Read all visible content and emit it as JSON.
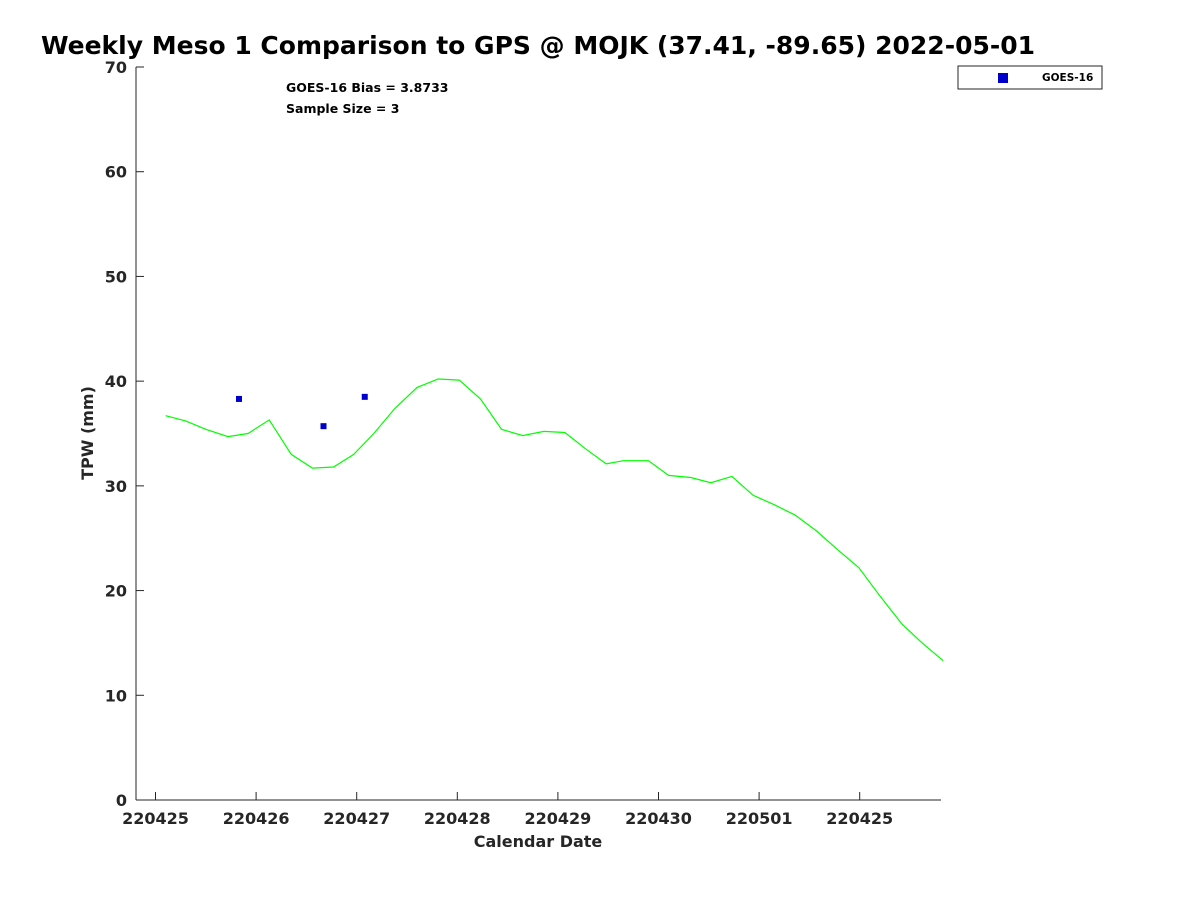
{
  "chart_data": {
    "type": "line",
    "title": "Weekly Meso 1 Comparison to GPS @ MOJK (37.41, -89.65) 2022-05-01",
    "xlabel": "Calendar Date",
    "ylabel": "TPW (mm)",
    "ylim": [
      0,
      70
    ],
    "xlim": [
      -0.01,
      7.83
    ],
    "yticks": [
      0,
      10,
      20,
      30,
      40,
      50,
      60,
      70
    ],
    "xticks": [
      {
        "pos": 0,
        "label": "220425"
      },
      {
        "pos": 1,
        "label": "220426"
      },
      {
        "pos": 2,
        "label": "220427"
      },
      {
        "pos": 3,
        "label": "220428"
      },
      {
        "pos": 4,
        "label": "220429"
      },
      {
        "pos": 5,
        "label": "220430"
      },
      {
        "pos": 6,
        "label": "220501"
      },
      {
        "pos": 7,
        "label": "220425"
      }
    ],
    "grid": false,
    "legend_position": "top-right",
    "annotations": [
      "GOES-16 Bias = 3.8733",
      "Sample Size = 3"
    ],
    "series": [
      {
        "name": "GPS",
        "style": "line",
        "color": "#00ff00",
        "points": [
          [
            0.1,
            36.7
          ],
          [
            0.3,
            36.2
          ],
          [
            0.5,
            35.4
          ],
          [
            0.72,
            34.7
          ],
          [
            0.92,
            35.0
          ],
          [
            1.13,
            36.3
          ],
          [
            1.35,
            33.0
          ],
          [
            1.56,
            31.7
          ],
          [
            1.77,
            31.8
          ],
          [
            1.97,
            33.0
          ],
          [
            2.17,
            35.0
          ],
          [
            2.38,
            37.4
          ],
          [
            2.6,
            39.4
          ],
          [
            2.81,
            40.2
          ],
          [
            3.02,
            40.1
          ],
          [
            3.23,
            38.3
          ],
          [
            3.44,
            35.4
          ],
          [
            3.65,
            34.8
          ],
          [
            3.86,
            35.2
          ],
          [
            4.07,
            35.1
          ],
          [
            4.28,
            33.5
          ],
          [
            4.48,
            32.1
          ],
          [
            4.65,
            32.4
          ],
          [
            4.9,
            32.4
          ],
          [
            5.1,
            31.0
          ],
          [
            5.32,
            30.8
          ],
          [
            5.52,
            30.3
          ],
          [
            5.73,
            30.9
          ],
          [
            5.94,
            29.1
          ],
          [
            6.15,
            28.2
          ],
          [
            6.36,
            27.2
          ],
          [
            6.57,
            25.7
          ],
          [
            6.78,
            23.9
          ],
          [
            6.99,
            22.2
          ],
          [
            7.2,
            19.5
          ],
          [
            7.42,
            16.8
          ],
          [
            7.62,
            15.0
          ],
          [
            7.83,
            13.3
          ]
        ]
      },
      {
        "name": "GOES-16",
        "style": "scatter",
        "color": "#0000cd",
        "marker": "square",
        "points": [
          [
            0.83,
            38.3
          ],
          [
            1.67,
            35.7
          ],
          [
            2.08,
            38.5
          ]
        ]
      }
    ],
    "legend": [
      {
        "label": "GOES-16",
        "color": "#0000cd",
        "marker": "square"
      }
    ]
  }
}
